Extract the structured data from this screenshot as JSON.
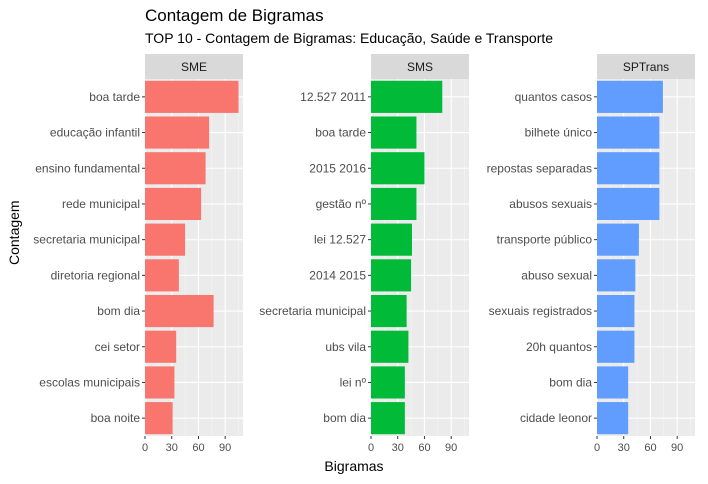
{
  "title": "Contagem de Bigramas",
  "subtitle": "TOP 10 - Contagem de Bigramas: Educação, Saúde e Transporte",
  "xlabel": "Bigramas",
  "ylabel": "Contagem",
  "chart_data": {
    "type": "bar",
    "orientation": "horizontal",
    "title": "Contagem de Bigramas",
    "subtitle": "TOP 10 - Contagem de Bigramas: Educação, Saúde e Transporte",
    "xlabel": "Bigramas",
    "ylabel": "Contagem",
    "xlim": [
      0,
      110
    ],
    "x_ticks": [
      0,
      30,
      60,
      90
    ],
    "grid": true,
    "facets": [
      {
        "name": "SME",
        "color": "#F8766D",
        "categories": [
          "boa tarde",
          "educação infantil",
          "ensino fundamental",
          "rede municipal",
          "secretaria municipal",
          "diretoria regional",
          "bom dia",
          "cei setor",
          "escolas municipais",
          "boa noite"
        ],
        "values": [
          105,
          72,
          68,
          63,
          45,
          38,
          77,
          35,
          33,
          31
        ]
      },
      {
        "name": "SMS",
        "color": "#00BA38",
        "categories": [
          "12.527 2011",
          "boa tarde",
          "2015 2016",
          "gestão nº",
          "lei 12.527",
          "2014 2015",
          "secretaria municipal",
          "ubs vila",
          "lei nº",
          "bom dia"
        ],
        "values": [
          80,
          51,
          60,
          51,
          46,
          45,
          40,
          42,
          38,
          38
        ]
      },
      {
        "name": "SPTrans",
        "color": "#619CFF",
        "categories": [
          "quantos casos",
          "bilhete único",
          "repostas separadas",
          "abusos sexuais",
          "transporte público",
          "abuso sexual",
          "sexuais registrados",
          "20h quantos",
          "bom dia",
          "cidade leonor"
        ],
        "values": [
          74,
          70,
          70,
          70,
          47,
          43,
          42,
          42,
          35,
          35
        ]
      }
    ]
  }
}
